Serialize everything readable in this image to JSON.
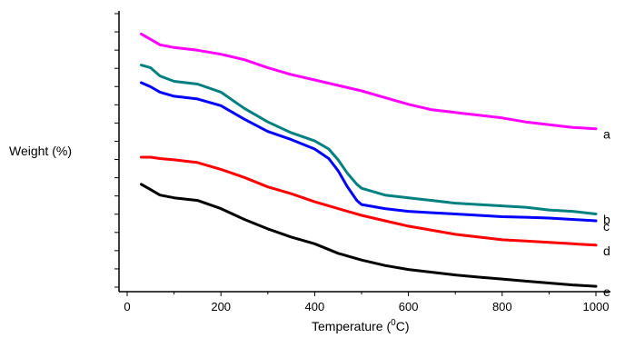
{
  "chart_data": {
    "type": "line",
    "xlabel_main": "Temperature (",
    "xlabel_sup": "0",
    "xlabel_end": "C)",
    "ylabel": "Weight (%)",
    "xlim": [
      0,
      1000
    ],
    "x_ticks": [
      "0",
      "200",
      "400",
      "600",
      "800",
      "1000"
    ],
    "y_ticks_labeled": false,
    "y_minor_tick_count": 16,
    "grid": false,
    "series": [
      {
        "name": "a",
        "color": "#ff00ff",
        "x": [
          30,
          50,
          70,
          100,
          150,
          200,
          250,
          300,
          350,
          400,
          450,
          500,
          550,
          600,
          650,
          700,
          750,
          800,
          850,
          900,
          950,
          1000
        ],
        "y": [
          0.935,
          0.915,
          0.895,
          0.885,
          0.875,
          0.86,
          0.84,
          0.81,
          0.785,
          0.765,
          0.745,
          0.725,
          0.7,
          0.675,
          0.655,
          0.645,
          0.635,
          0.625,
          0.61,
          0.6,
          0.59,
          0.585
        ]
      },
      {
        "name": "b",
        "color": "#008080",
        "x": [
          30,
          50,
          70,
          100,
          150,
          200,
          250,
          300,
          350,
          400,
          430,
          450,
          470,
          490,
          500,
          550,
          600,
          650,
          700,
          750,
          800,
          850,
          900,
          950,
          1000
        ],
        "y": [
          0.82,
          0.81,
          0.78,
          0.76,
          0.75,
          0.72,
          0.66,
          0.61,
          0.57,
          0.54,
          0.51,
          0.47,
          0.42,
          0.38,
          0.365,
          0.34,
          0.33,
          0.32,
          0.31,
          0.305,
          0.3,
          0.295,
          0.285,
          0.28,
          0.27
        ]
      },
      {
        "name": "c",
        "color": "#0000ff",
        "x": [
          30,
          50,
          70,
          100,
          150,
          200,
          250,
          300,
          350,
          400,
          430,
          450,
          470,
          490,
          500,
          550,
          600,
          650,
          700,
          750,
          800,
          850,
          900,
          950,
          1000
        ],
        "y": [
          0.755,
          0.74,
          0.72,
          0.705,
          0.695,
          0.67,
          0.62,
          0.575,
          0.545,
          0.51,
          0.475,
          0.43,
          0.37,
          0.32,
          0.305,
          0.29,
          0.28,
          0.275,
          0.27,
          0.265,
          0.26,
          0.258,
          0.255,
          0.25,
          0.245
        ]
      },
      {
        "name": "d",
        "color": "#ff0000",
        "x": [
          30,
          50,
          70,
          100,
          150,
          200,
          250,
          300,
          350,
          400,
          450,
          500,
          550,
          600,
          650,
          700,
          750,
          800,
          850,
          900,
          950,
          1000
        ],
        "y": [
          0.48,
          0.48,
          0.475,
          0.47,
          0.46,
          0.435,
          0.405,
          0.37,
          0.345,
          0.315,
          0.29,
          0.265,
          0.245,
          0.225,
          0.21,
          0.195,
          0.185,
          0.175,
          0.17,
          0.165,
          0.16,
          0.155
        ]
      },
      {
        "name": "e",
        "color": "#000000",
        "x": [
          30,
          50,
          70,
          100,
          150,
          200,
          250,
          300,
          350,
          400,
          450,
          500,
          550,
          600,
          650,
          700,
          750,
          800,
          850,
          900,
          950,
          1000
        ],
        "y": [
          0.38,
          0.36,
          0.34,
          0.33,
          0.32,
          0.29,
          0.25,
          0.215,
          0.185,
          0.16,
          0.125,
          0.1,
          0.08,
          0.065,
          0.055,
          0.045,
          0.037,
          0.03,
          0.022,
          0.015,
          0.008,
          0.003
        ]
      }
    ]
  }
}
